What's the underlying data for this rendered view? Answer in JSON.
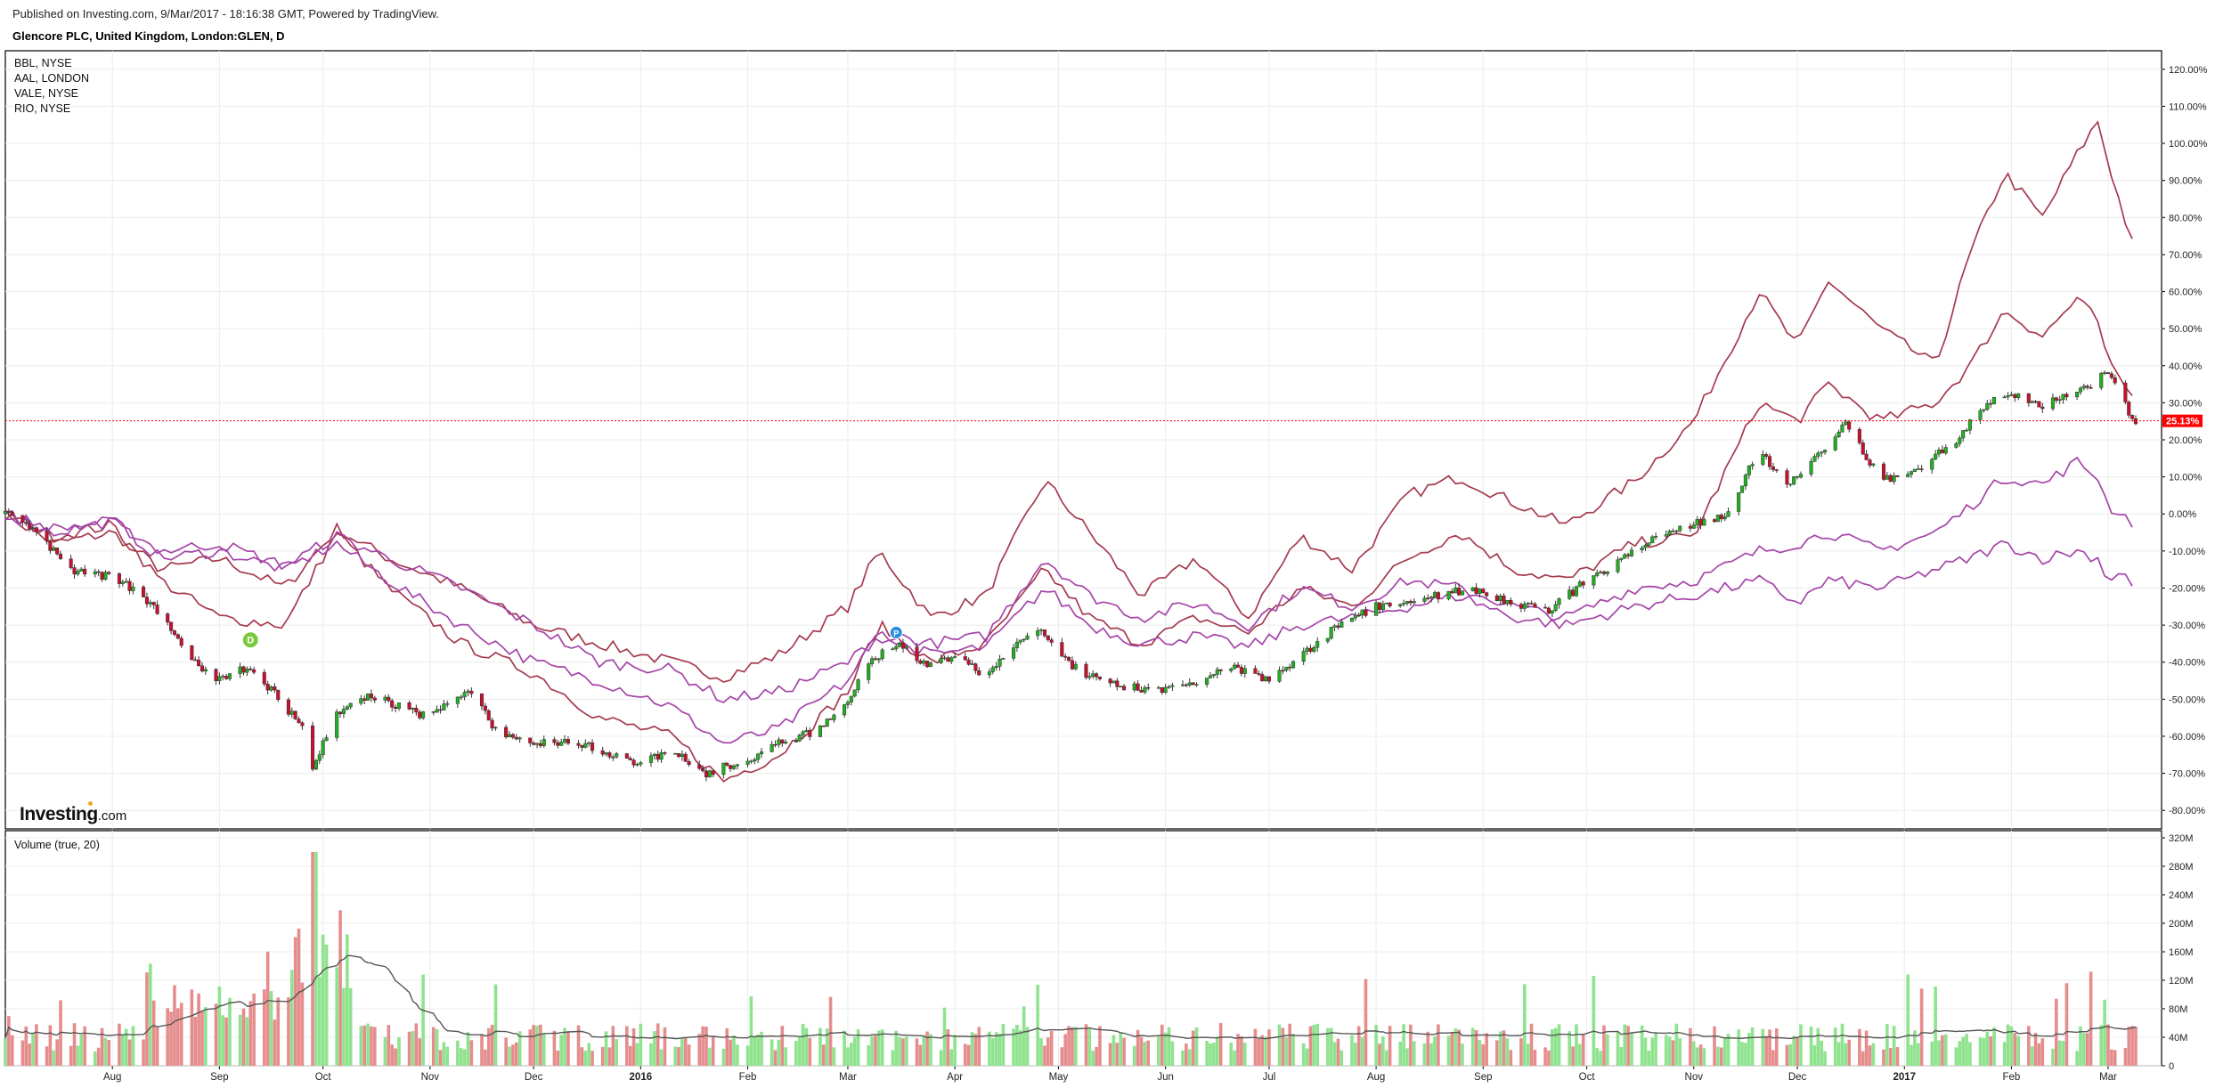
{
  "header": {
    "published": "Published on Investing.com, 9/Mar/2017 - 18:16:38 GMT, Powered by TradingView.",
    "title": "Glencore PLC, United Kingdom, London:GLEN, D"
  },
  "brand": {
    "name": "Investing",
    "domain": ".com"
  },
  "legend": [
    "BBL, NYSE",
    "AAL, LONDON",
    "VALE, NYSE",
    "RIO, NYSE"
  ],
  "colors": {
    "up": "#22b022",
    "down": "#c8102e",
    "up_vol": "#8fe38f",
    "down_vol": "#e58d8d",
    "series_red": "#a53a4e",
    "series_purple": "#a545a8",
    "ma": "#555555",
    "last_label_bg": "#ff0000",
    "grid": "#ececec"
  },
  "chart_data": [
    {
      "type": "candlestick",
      "name": "Glencore PLC, United Kingdom, London:GLEN, D",
      "y_axis": {
        "unit": "%",
        "ylim": [
          -85,
          125
        ],
        "ticks": [
          "120.00%",
          "110.00%",
          "100.00%",
          "90.00%",
          "80.00%",
          "70.00%",
          "60.00%",
          "50.00%",
          "40.00%",
          "30.00%",
          "20.00%",
          "10.00%",
          "0.00%",
          "-10.00%",
          "-20.00%",
          "-30.00%",
          "-40.00%",
          "-50.00%",
          "-60.00%",
          "-70.00%",
          "-80.00%"
        ]
      },
      "x_axis": {
        "ticks": [
          "Aug",
          "Sep",
          "Oct",
          "Nov",
          "Dec",
          "2016",
          "Feb",
          "Mar",
          "Apr",
          "May",
          "Jun",
          "Jul",
          "Aug",
          "Sep",
          "Oct",
          "Nov",
          "Dec",
          "2017",
          "Feb",
          "Mar"
        ]
      },
      "last_value_label": "25.13%",
      "last_value": 25.13,
      "markers": [
        {
          "label": "D",
          "date": "2015-09-10"
        },
        {
          "label": "P",
          "date": "2016-03-15"
        }
      ],
      "glen_path": [
        [
          "2015-07-01",
          0
        ],
        [
          "2015-07-10",
          -5
        ],
        [
          "2015-07-20",
          -15
        ],
        [
          "2015-08-01",
          -17
        ],
        [
          "2015-08-10",
          -22
        ],
        [
          "2015-08-20",
          -33
        ],
        [
          "2015-08-25",
          -40
        ],
        [
          "2015-09-01",
          -45
        ],
        [
          "2015-09-10",
          -41
        ],
        [
          "2015-09-20",
          -52
        ],
        [
          "2015-09-25",
          -57
        ],
        [
          "2015-09-28",
          -70
        ],
        [
          "2015-10-01",
          -62
        ],
        [
          "2015-10-05",
          -54
        ],
        [
          "2015-10-15",
          -49
        ],
        [
          "2015-11-01",
          -55
        ],
        [
          "2015-11-12",
          -47
        ],
        [
          "2015-11-20",
          -58
        ],
        [
          "2015-12-01",
          -62
        ],
        [
          "2015-12-15",
          -62
        ],
        [
          "2016-01-01",
          -68
        ],
        [
          "2016-01-10",
          -63
        ],
        [
          "2016-01-20",
          -70
        ],
        [
          "2016-02-01",
          -66
        ],
        [
          "2016-02-10",
          -62
        ],
        [
          "2016-02-20",
          -59
        ],
        [
          "2016-03-01",
          -51
        ],
        [
          "2016-03-05",
          -42
        ],
        [
          "2016-03-15",
          -35
        ],
        [
          "2016-03-25",
          -41
        ],
        [
          "2016-04-01",
          -38
        ],
        [
          "2016-04-10",
          -44
        ],
        [
          "2016-04-20",
          -34
        ],
        [
          "2016-04-26",
          -32
        ],
        [
          "2016-05-01",
          -38
        ],
        [
          "2016-05-10",
          -44
        ],
        [
          "2016-05-20",
          -47
        ],
        [
          "2016-06-01",
          -47
        ],
        [
          "2016-06-10",
          -45
        ],
        [
          "2016-06-20",
          -41
        ],
        [
          "2016-07-01",
          -45
        ],
        [
          "2016-07-10",
          -38
        ],
        [
          "2016-07-20",
          -31
        ],
        [
          "2016-08-01",
          -25
        ],
        [
          "2016-08-15",
          -23
        ],
        [
          "2016-08-28",
          -20
        ],
        [
          "2016-09-10",
          -24
        ],
        [
          "2016-09-20",
          -26
        ],
        [
          "2016-10-01",
          -18
        ],
        [
          "2016-10-10",
          -13
        ],
        [
          "2016-10-20",
          -7
        ],
        [
          "2016-11-01",
          -3
        ],
        [
          "2016-11-10",
          0
        ],
        [
          "2016-11-20",
          17
        ],
        [
          "2016-11-28",
          7
        ],
        [
          "2016-12-05",
          14
        ],
        [
          "2016-12-15",
          24
        ],
        [
          "2016-12-25",
          10
        ],
        [
          "2017-01-01",
          9
        ],
        [
          "2017-01-15",
          19
        ],
        [
          "2017-01-25",
          30
        ],
        [
          "2017-02-01",
          32
        ],
        [
          "2017-02-10",
          29
        ],
        [
          "2017-02-20",
          33
        ],
        [
          "2017-03-01",
          38
        ],
        [
          "2017-03-05",
          31
        ],
        [
          "2017-03-08",
          25.13
        ]
      ],
      "comparison_series": [
        {
          "label_index": 0,
          "color": "series_red",
          "path": [
            [
              "2015-07-01",
              0
            ],
            [
              "2015-07-15",
              -8
            ],
            [
              "2015-08-01",
              -5
            ],
            [
              "2015-08-15",
              -15
            ],
            [
              "2015-09-01",
              -12
            ],
            [
              "2015-09-20",
              -20
            ],
            [
              "2015-10-05",
              -4
            ],
            [
              "2015-10-20",
              -12
            ],
            [
              "2015-11-10",
              -20
            ],
            [
              "2015-12-01",
              -30
            ],
            [
              "2015-12-20",
              -35
            ],
            [
              "2016-01-10",
              -40
            ],
            [
              "2016-01-25",
              -44
            ],
            [
              "2016-02-10",
              -38
            ],
            [
              "2016-03-01",
              -25
            ],
            [
              "2016-03-10",
              -10
            ],
            [
              "2016-03-25",
              -28
            ],
            [
              "2016-04-10",
              -22
            ],
            [
              "2016-04-27",
              9
            ],
            [
              "2016-05-10",
              -5
            ],
            [
              "2016-05-25",
              -22
            ],
            [
              "2016-06-10",
              -12
            ],
            [
              "2016-06-25",
              -28
            ],
            [
              "2016-07-10",
              -6
            ],
            [
              "2016-07-25",
              -15
            ],
            [
              "2016-08-10",
              5
            ],
            [
              "2016-08-25",
              10
            ],
            [
              "2016-09-10",
              3
            ],
            [
              "2016-09-25",
              -3
            ],
            [
              "2016-10-15",
              9
            ],
            [
              "2016-11-01",
              25
            ],
            [
              "2016-11-20",
              60
            ],
            [
              "2016-12-01",
              45
            ],
            [
              "2016-12-10",
              63
            ],
            [
              "2016-12-25",
              50
            ],
            [
              "2017-01-10",
              40
            ],
            [
              "2017-01-20",
              70
            ],
            [
              "2017-01-30",
              92
            ],
            [
              "2017-02-10",
              80
            ],
            [
              "2017-02-20",
              97
            ],
            [
              "2017-02-26",
              106
            ],
            [
              "2017-03-01",
              95
            ],
            [
              "2017-03-05",
              82
            ],
            [
              "2017-03-09",
              70
            ]
          ]
        },
        {
          "label_index": 1,
          "color": "series_red",
          "path": [
            [
              "2015-07-01",
              0
            ],
            [
              "2015-07-15",
              -6
            ],
            [
              "2015-08-01",
              -3
            ],
            [
              "2015-08-15",
              -18
            ],
            [
              "2015-09-01",
              -28
            ],
            [
              "2015-09-20",
              -30
            ],
            [
              "2015-10-05",
              -5
            ],
            [
              "2015-10-20",
              -20
            ],
            [
              "2015-11-10",
              -35
            ],
            [
              "2015-12-01",
              -43
            ],
            [
              "2015-12-20",
              -55
            ],
            [
              "2016-01-10",
              -60
            ],
            [
              "2016-01-25",
              -72
            ],
            [
              "2016-02-10",
              -65
            ],
            [
              "2016-03-01",
              -48
            ],
            [
              "2016-03-10",
              -30
            ],
            [
              "2016-03-25",
              -40
            ],
            [
              "2016-04-10",
              -35
            ],
            [
              "2016-04-27",
              -15
            ],
            [
              "2016-05-10",
              -28
            ],
            [
              "2016-05-25",
              -35
            ],
            [
              "2016-06-10",
              -28
            ],
            [
              "2016-06-25",
              -32
            ],
            [
              "2016-07-10",
              -20
            ],
            [
              "2016-07-25",
              -25
            ],
            [
              "2016-08-10",
              -12
            ],
            [
              "2016-08-25",
              -5
            ],
            [
              "2016-09-10",
              -15
            ],
            [
              "2016-09-25",
              -18
            ],
            [
              "2016-10-15",
              -8
            ],
            [
              "2016-11-01",
              -6
            ],
            [
              "2016-11-20",
              30
            ],
            [
              "2016-12-01",
              25
            ],
            [
              "2016-12-10",
              35
            ],
            [
              "2016-12-25",
              25
            ],
            [
              "2017-01-10",
              30
            ],
            [
              "2017-01-20",
              40
            ],
            [
              "2017-01-30",
              55
            ],
            [
              "2017-02-10",
              48
            ],
            [
              "2017-02-20",
              58
            ],
            [
              "2017-02-26",
              52
            ],
            [
              "2017-03-01",
              40
            ],
            [
              "2017-03-05",
              36
            ],
            [
              "2017-03-09",
              30
            ]
          ]
        },
        {
          "label_index": 2,
          "color": "series_purple",
          "path": [
            [
              "2015-07-01",
              0
            ],
            [
              "2015-07-15",
              -5
            ],
            [
              "2015-08-01",
              -2
            ],
            [
              "2015-08-15",
              -12
            ],
            [
              "2015-09-01",
              -10
            ],
            [
              "2015-09-20",
              -15
            ],
            [
              "2015-10-05",
              -8
            ],
            [
              "2015-10-20",
              -18
            ],
            [
              "2015-11-10",
              -30
            ],
            [
              "2015-12-01",
              -40
            ],
            [
              "2015-12-20",
              -45
            ],
            [
              "2016-01-10",
              -52
            ],
            [
              "2016-01-25",
              -62
            ],
            [
              "2016-02-10",
              -58
            ],
            [
              "2016-03-01",
              -45
            ],
            [
              "2016-03-10",
              -32
            ],
            [
              "2016-03-25",
              -35
            ],
            [
              "2016-04-10",
              -33
            ],
            [
              "2016-04-27",
              -12
            ],
            [
              "2016-05-10",
              -22
            ],
            [
              "2016-05-25",
              -28
            ],
            [
              "2016-06-10",
              -24
            ],
            [
              "2016-06-25",
              -30
            ],
            [
              "2016-07-10",
              -20
            ],
            [
              "2016-07-25",
              -25
            ],
            [
              "2016-08-10",
              -18
            ],
            [
              "2016-08-25",
              -20
            ],
            [
              "2016-09-10",
              -25
            ],
            [
              "2016-09-25",
              -28
            ],
            [
              "2016-10-15",
              -20
            ],
            [
              "2016-11-01",
              -18
            ],
            [
              "2016-11-20",
              -10
            ],
            [
              "2016-12-01",
              -8
            ],
            [
              "2016-12-10",
              -5
            ],
            [
              "2016-12-25",
              -10
            ],
            [
              "2017-01-10",
              -5
            ],
            [
              "2017-01-20",
              2
            ],
            [
              "2017-01-30",
              10
            ],
            [
              "2017-02-10",
              8
            ],
            [
              "2017-02-20",
              14
            ],
            [
              "2017-02-26",
              10
            ],
            [
              "2017-03-01",
              2
            ],
            [
              "2017-03-05",
              0
            ],
            [
              "2017-03-09",
              -3
            ]
          ]
        },
        {
          "label_index": 3,
          "color": "series_purple",
          "path": [
            [
              "2015-07-01",
              0
            ],
            [
              "2015-07-15",
              -4
            ],
            [
              "2015-08-01",
              -2
            ],
            [
              "2015-08-15",
              -10
            ],
            [
              "2015-09-01",
              -8
            ],
            [
              "2015-09-20",
              -14
            ],
            [
              "2015-10-05",
              -6
            ],
            [
              "2015-10-20",
              -12
            ],
            [
              "2015-11-10",
              -20
            ],
            [
              "2015-12-01",
              -30
            ],
            [
              "2015-12-20",
              -40
            ],
            [
              "2016-01-10",
              -42
            ],
            [
              "2016-01-25",
              -50
            ],
            [
              "2016-02-10",
              -48
            ],
            [
              "2016-03-01",
              -40
            ],
            [
              "2016-03-10",
              -33
            ],
            [
              "2016-03-25",
              -38
            ],
            [
              "2016-04-10",
              -36
            ],
            [
              "2016-04-27",
              -20
            ],
            [
              "2016-05-10",
              -30
            ],
            [
              "2016-05-25",
              -35
            ],
            [
              "2016-06-10",
              -33
            ],
            [
              "2016-06-25",
              -36
            ],
            [
              "2016-07-10",
              -30
            ],
            [
              "2016-07-25",
              -28
            ],
            [
              "2016-08-10",
              -25
            ],
            [
              "2016-08-25",
              -22
            ],
            [
              "2016-09-10",
              -28
            ],
            [
              "2016-09-25",
              -30
            ],
            [
              "2016-10-15",
              -25
            ],
            [
              "2016-11-01",
              -22
            ],
            [
              "2016-11-20",
              -18
            ],
            [
              "2016-12-01",
              -24
            ],
            [
              "2016-12-10",
              -18
            ],
            [
              "2016-12-25",
              -20
            ],
            [
              "2017-01-10",
              -15
            ],
            [
              "2017-01-20",
              -12
            ],
            [
              "2017-01-30",
              -8
            ],
            [
              "2017-02-10",
              -12
            ],
            [
              "2017-02-20",
              -10
            ],
            [
              "2017-02-26",
              -12
            ],
            [
              "2017-03-01",
              -18
            ],
            [
              "2017-03-05",
              -15
            ],
            [
              "2017-03-09",
              -21
            ]
          ]
        }
      ]
    },
    {
      "type": "bar",
      "name": "Volume (true, 20)",
      "y_axis": {
        "ylim": [
          0,
          330
        ],
        "ticks": [
          "320M",
          "280M",
          "240M",
          "200M",
          "160M",
          "120M",
          "80M",
          "40M",
          "0"
        ]
      },
      "peak_volume_millions": 300,
      "ma_label": "Volume (true, 20)"
    }
  ]
}
